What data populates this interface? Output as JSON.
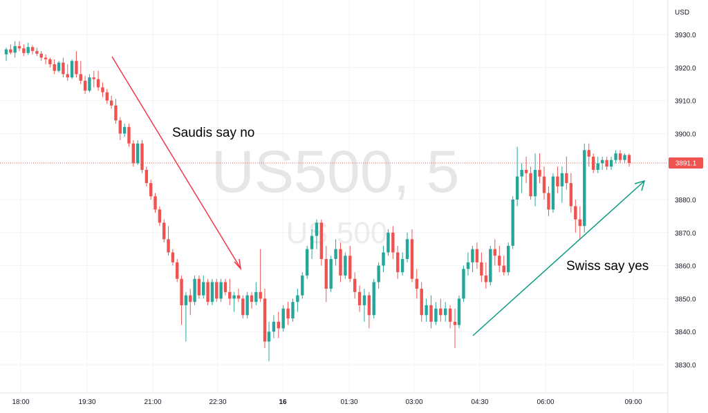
{
  "chart_data": {
    "type": "candlestick",
    "symbol_watermark": "US500, 5",
    "sub_watermark": "US 500",
    "currency": "USD",
    "last_price": "3891.1",
    "ylim": [
      3820,
      3937
    ],
    "x_ticks": [
      "18:00",
      "19:30",
      "21:00",
      "22:30",
      "16",
      "01:30",
      "03:00",
      "04:30",
      "06:00",
      "09:00"
    ],
    "y_ticks": [
      "3930.0",
      "3920.0",
      "3910.0",
      "3900.0",
      "3880.0",
      "3870.0",
      "3860.0",
      "3850.0",
      "3840.0",
      "3830.0"
    ],
    "annotations": [
      {
        "text": "Saudis say no",
        "direction": "down",
        "color": "#f23645"
      },
      {
        "text": "Swiss say yes",
        "direction": "up",
        "color": "#089981"
      }
    ],
    "colors": {
      "up": "#26a69a",
      "down": "#ef5350",
      "last_price_line": "#ef5350"
    },
    "candles_seg1": [
      {
        "o": 3924,
        "h": 3926,
        "l": 3922,
        "c": 3925.5
      },
      {
        "o": 3925.5,
        "h": 3927,
        "l": 3924,
        "c": 3924.5
      },
      {
        "o": 3924.5,
        "h": 3928,
        "l": 3923,
        "c": 3926.5
      },
      {
        "o": 3926.5,
        "h": 3928,
        "l": 3925,
        "c": 3925.8
      },
      {
        "o": 3925.8,
        "h": 3927,
        "l": 3923.5,
        "c": 3924.4
      },
      {
        "o": 3924.4,
        "h": 3927.5,
        "l": 3923.8,
        "c": 3926.2
      },
      {
        "o": 3926.2,
        "h": 3926.8,
        "l": 3924,
        "c": 3925
      },
      {
        "o": 3925,
        "h": 3926,
        "l": 3923.5,
        "c": 3924.2
      },
      {
        "o": 3924.2,
        "h": 3925,
        "l": 3922,
        "c": 3923
      },
      {
        "o": 3923,
        "h": 3924,
        "l": 3921,
        "c": 3922.5
      },
      {
        "o": 3922.5,
        "h": 3923,
        "l": 3920,
        "c": 3921
      },
      {
        "o": 3921,
        "h": 3922.5,
        "l": 3918,
        "c": 3919
      },
      {
        "o": 3919,
        "h": 3922,
        "l": 3918.5,
        "c": 3921.5
      },
      {
        "o": 3921.5,
        "h": 3923,
        "l": 3917,
        "c": 3918
      },
      {
        "o": 3918,
        "h": 3921,
        "l": 3916,
        "c": 3917
      },
      {
        "o": 3917,
        "h": 3922.5,
        "l": 3916.5,
        "c": 3922
      },
      {
        "o": 3922,
        "h": 3925,
        "l": 3917,
        "c": 3918
      },
      {
        "o": 3918,
        "h": 3922,
        "l": 3915,
        "c": 3916
      },
      {
        "o": 3916,
        "h": 3917.5,
        "l": 3912,
        "c": 3913
      },
      {
        "o": 3913,
        "h": 3918,
        "l": 3912.5,
        "c": 3917
      },
      {
        "o": 3917,
        "h": 3919,
        "l": 3914,
        "c": 3916.5
      },
      {
        "o": 3916.5,
        "h": 3919,
        "l": 3913,
        "c": 3914
      },
      {
        "o": 3914,
        "h": 3915.5,
        "l": 3911,
        "c": 3912.5
      },
      {
        "o": 3912.5,
        "h": 3913.5,
        "l": 3909,
        "c": 3910
      },
      {
        "o": 3910,
        "h": 3911.5,
        "l": 3907.5,
        "c": 3908.5
      },
      {
        "o": 3908.5,
        "h": 3910.5,
        "l": 3903,
        "c": 3904
      },
      {
        "o": 3904,
        "h": 3905,
        "l": 3898,
        "c": 3900
      },
      {
        "o": 3900,
        "h": 3903,
        "l": 3899,
        "c": 3902
      },
      {
        "o": 3902,
        "h": 3903,
        "l": 3896,
        "c": 3897
      },
      {
        "o": 3897,
        "h": 3898,
        "l": 3890,
        "c": 3891
      },
      {
        "o": 3891,
        "h": 3898,
        "l": 3890.5,
        "c": 3897
      },
      {
        "o": 3897,
        "h": 3898,
        "l": 3888,
        "c": 3889
      },
      {
        "o": 3889,
        "h": 3890,
        "l": 3884,
        "c": 3885
      },
      {
        "o": 3885,
        "h": 3886,
        "l": 3880,
        "c": 3881
      },
      {
        "o": 3881,
        "h": 3882,
        "l": 3876,
        "c": 3877
      },
      {
        "o": 3877,
        "h": 3878,
        "l": 3872,
        "c": 3873
      },
      {
        "o": 3873,
        "h": 3874,
        "l": 3867,
        "c": 3868
      },
      {
        "o": 3868,
        "h": 3872,
        "l": 3863,
        "c": 3864
      },
      {
        "o": 3864,
        "h": 3865,
        "l": 3860,
        "c": 3861
      },
      {
        "o": 3861,
        "h": 3862,
        "l": 3855,
        "c": 3856
      },
      {
        "o": 3856,
        "h": 3857,
        "l": 3842,
        "c": 3848
      },
      {
        "o": 3848,
        "h": 3852,
        "l": 3837,
        "c": 3851
      },
      {
        "o": 3851,
        "h": 3853,
        "l": 3845,
        "c": 3849
      },
      {
        "o": 3849,
        "h": 3857,
        "l": 3848,
        "c": 3856
      },
      {
        "o": 3856,
        "h": 3857,
        "l": 3850,
        "c": 3851
      },
      {
        "o": 3851,
        "h": 3857,
        "l": 3850,
        "c": 3855
      },
      {
        "o": 3855,
        "h": 3856,
        "l": 3848,
        "c": 3849
      },
      {
        "o": 3849,
        "h": 3856,
        "l": 3848,
        "c": 3855
      },
      {
        "o": 3855,
        "h": 3856,
        "l": 3849,
        "c": 3850
      },
      {
        "o": 3850,
        "h": 3856,
        "l": 3849,
        "c": 3855
      },
      {
        "o": 3855,
        "h": 3856,
        "l": 3851,
        "c": 3852
      },
      {
        "o": 3852,
        "h": 3856,
        "l": 3848,
        "c": 3850
      },
      {
        "o": 3850,
        "h": 3852,
        "l": 3846,
        "c": 3851
      },
      {
        "o": 3851,
        "h": 3853,
        "l": 3849,
        "c": 3850
      },
      {
        "o": 3850,
        "h": 3851,
        "l": 3844,
        "c": 3845
      },
      {
        "o": 3845,
        "h": 3852,
        "l": 3844,
        "c": 3851
      },
      {
        "o": 3851,
        "h": 3852,
        "l": 3847,
        "c": 3849
      },
      {
        "o": 3849,
        "h": 3855,
        "l": 3848,
        "c": 3852
      },
      {
        "o": 3852,
        "h": 3865,
        "l": 3849,
        "c": 3850
      },
      {
        "o": 3850,
        "h": 3853,
        "l": 3835,
        "c": 3837
      }
    ],
    "candles_seg2": [
      {
        "o": 3837,
        "h": 3843,
        "l": 3831,
        "c": 3840
      },
      {
        "o": 3840,
        "h": 3845,
        "l": 3838,
        "c": 3843
      },
      {
        "o": 3843,
        "h": 3846,
        "l": 3838,
        "c": 3841
      },
      {
        "o": 3841,
        "h": 3848,
        "l": 3840,
        "c": 3847
      },
      {
        "o": 3847,
        "h": 3849,
        "l": 3842,
        "c": 3844
      },
      {
        "o": 3844,
        "h": 3850,
        "l": 3843,
        "c": 3849
      },
      {
        "o": 3849,
        "h": 3853,
        "l": 3846,
        "c": 3851
      },
      {
        "o": 3851,
        "h": 3858,
        "l": 3850,
        "c": 3857
      },
      {
        "o": 3857,
        "h": 3866,
        "l": 3856,
        "c": 3865
      },
      {
        "o": 3865,
        "h": 3871,
        "l": 3862,
        "c": 3869
      },
      {
        "o": 3869,
        "h": 3874,
        "l": 3865,
        "c": 3873
      },
      {
        "o": 3873,
        "h": 3874,
        "l": 3860,
        "c": 3862
      },
      {
        "o": 3862,
        "h": 3866,
        "l": 3849,
        "c": 3853
      },
      {
        "o": 3853,
        "h": 3863,
        "l": 3852,
        "c": 3862
      },
      {
        "o": 3862,
        "h": 3868,
        "l": 3860,
        "c": 3865
      },
      {
        "o": 3865,
        "h": 3867,
        "l": 3855,
        "c": 3857
      },
      {
        "o": 3857,
        "h": 3864,
        "l": 3856,
        "c": 3863
      },
      {
        "o": 3863,
        "h": 3866,
        "l": 3855,
        "c": 3856
      },
      {
        "o": 3856,
        "h": 3858,
        "l": 3850,
        "c": 3852
      },
      {
        "o": 3852,
        "h": 3854,
        "l": 3846,
        "c": 3848
      },
      {
        "o": 3848,
        "h": 3853,
        "l": 3843,
        "c": 3851
      },
      {
        "o": 3851,
        "h": 3852,
        "l": 3841,
        "c": 3845
      },
      {
        "o": 3845,
        "h": 3856,
        "l": 3844,
        "c": 3855
      },
      {
        "o": 3855,
        "h": 3861,
        "l": 3853,
        "c": 3860
      },
      {
        "o": 3860,
        "h": 3866,
        "l": 3858,
        "c": 3864
      },
      {
        "o": 3864,
        "h": 3871,
        "l": 3863,
        "c": 3870
      },
      {
        "o": 3870,
        "h": 3872,
        "l": 3862,
        "c": 3864
      },
      {
        "o": 3864,
        "h": 3866,
        "l": 3856,
        "c": 3858
      },
      {
        "o": 3858,
        "h": 3864,
        "l": 3857,
        "c": 3862
      },
      {
        "o": 3862,
        "h": 3870,
        "l": 3861,
        "c": 3868
      },
      {
        "o": 3868,
        "h": 3871,
        "l": 3855,
        "c": 3856
      },
      {
        "o": 3856,
        "h": 3859,
        "l": 3850,
        "c": 3853
      },
      {
        "o": 3853,
        "h": 3855,
        "l": 3843,
        "c": 3845
      },
      {
        "o": 3845,
        "h": 3850,
        "l": 3843,
        "c": 3848
      },
      {
        "o": 3848,
        "h": 3851,
        "l": 3841,
        "c": 3843
      },
      {
        "o": 3843,
        "h": 3849,
        "l": 3842,
        "c": 3847
      },
      {
        "o": 3847,
        "h": 3850,
        "l": 3843,
        "c": 3845
      },
      {
        "o": 3845,
        "h": 3849,
        "l": 3843,
        "c": 3847
      },
      {
        "o": 3847,
        "h": 3848,
        "l": 3841,
        "c": 3843
      },
      {
        "o": 3843,
        "h": 3847,
        "l": 3835,
        "c": 3842
      }
    ],
    "candles_seg3": [
      {
        "o": 3842,
        "h": 3851,
        "l": 3841,
        "c": 3850
      },
      {
        "o": 3850,
        "h": 3860,
        "l": 3849,
        "c": 3859
      },
      {
        "o": 3859,
        "h": 3864,
        "l": 3857,
        "c": 3861
      },
      {
        "o": 3861,
        "h": 3866,
        "l": 3858,
        "c": 3865
      },
      {
        "o": 3865,
        "h": 3867,
        "l": 3859,
        "c": 3861
      },
      {
        "o": 3861,
        "h": 3864,
        "l": 3855,
        "c": 3857
      },
      {
        "o": 3857,
        "h": 3861,
        "l": 3853,
        "c": 3855
      },
      {
        "o": 3855,
        "h": 3866,
        "l": 3854,
        "c": 3865
      },
      {
        "o": 3865,
        "h": 3868,
        "l": 3860,
        "c": 3863
      },
      {
        "o": 3863,
        "h": 3866,
        "l": 3858,
        "c": 3860
      },
      {
        "o": 3860,
        "h": 3863,
        "l": 3857,
        "c": 3858
      },
      {
        "o": 3858,
        "h": 3867,
        "l": 3857,
        "c": 3866
      },
      {
        "o": 3866,
        "h": 3881,
        "l": 3865,
        "c": 3880
      },
      {
        "o": 3880,
        "h": 3896,
        "l": 3878,
        "c": 3887
      },
      {
        "o": 3887,
        "h": 3891,
        "l": 3882,
        "c": 3889
      },
      {
        "o": 3889,
        "h": 3893,
        "l": 3885,
        "c": 3888
      },
      {
        "o": 3888,
        "h": 3890,
        "l": 3880,
        "c": 3881
      },
      {
        "o": 3881,
        "h": 3894,
        "l": 3878,
        "c": 3889
      },
      {
        "o": 3889,
        "h": 3894,
        "l": 3885,
        "c": 3887
      },
      {
        "o": 3887,
        "h": 3890,
        "l": 3880,
        "c": 3882
      },
      {
        "o": 3882,
        "h": 3884,
        "l": 3875,
        "c": 3877
      },
      {
        "o": 3877,
        "h": 3888,
        "l": 3876,
        "c": 3887
      },
      {
        "o": 3887,
        "h": 3890,
        "l": 3882,
        "c": 3884
      },
      {
        "o": 3884,
        "h": 3890,
        "l": 3879,
        "c": 3888
      },
      {
        "o": 3888,
        "h": 3893,
        "l": 3883,
        "c": 3885
      },
      {
        "o": 3885,
        "h": 3888,
        "l": 3876,
        "c": 3878
      },
      {
        "o": 3878,
        "h": 3880,
        "l": 3870,
        "c": 3874
      },
      {
        "o": 3874,
        "h": 3878,
        "l": 3868,
        "c": 3872
      },
      {
        "o": 3872,
        "h": 3897,
        "l": 3870,
        "c": 3895
      },
      {
        "o": 3895,
        "h": 3897,
        "l": 3890,
        "c": 3893
      },
      {
        "o": 3893,
        "h": 3894,
        "l": 3888,
        "c": 3889
      },
      {
        "o": 3889,
        "h": 3893,
        "l": 3888,
        "c": 3891
      },
      {
        "o": 3891,
        "h": 3893,
        "l": 3889,
        "c": 3892
      },
      {
        "o": 3892,
        "h": 3893,
        "l": 3889,
        "c": 3890
      },
      {
        "o": 3890,
        "h": 3893,
        "l": 3889,
        "c": 3892
      },
      {
        "o": 3892,
        "h": 3895,
        "l": 3891,
        "c": 3894
      },
      {
        "o": 3894,
        "h": 3895,
        "l": 3891,
        "c": 3892
      },
      {
        "o": 3892,
        "h": 3894,
        "l": 3891,
        "c": 3893.5
      },
      {
        "o": 3893.5,
        "h": 3894,
        "l": 3890,
        "c": 3891.1
      }
    ]
  }
}
